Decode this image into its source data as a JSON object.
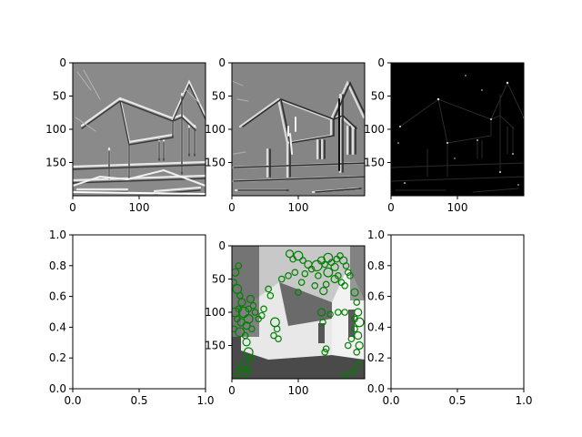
{
  "colors": {
    "background": "#ffffff",
    "axis": "#000000",
    "marker": "#008000",
    "filter_neutral_gray": "#808080",
    "response_background": "#000000"
  },
  "chart_data": [
    {
      "panel": "horizontal-gradient",
      "type": "image",
      "description": "grayscale edge-filter response of the house photo",
      "xlim": [
        0,
        200
      ],
      "ylim": [
        200,
        0
      ],
      "xticks": [
        0,
        100
      ],
      "yticks": [
        0,
        50,
        100,
        150
      ],
      "xtick_labels": [
        "0",
        "100"
      ],
      "ytick_labels": [
        "0",
        "50",
        "100",
        "150"
      ],
      "grid": false
    },
    {
      "panel": "vertical-gradient",
      "type": "image",
      "description": "grayscale edge-filter response of the house photo",
      "xlim": [
        0,
        200
      ],
      "ylim": [
        200,
        0
      ],
      "xticks": [
        0,
        100
      ],
      "yticks": [
        0,
        50,
        100,
        150
      ],
      "xtick_labels": [
        "0",
        "100"
      ],
      "ytick_labels": [
        "0",
        "50",
        "100",
        "150"
      ],
      "grid": false
    },
    {
      "panel": "corner-response",
      "type": "image",
      "description": "mostly black response map with sparse bright points",
      "xlim": [
        0,
        200
      ],
      "ylim": [
        200,
        0
      ],
      "xticks": [
        0,
        100
      ],
      "yticks": [
        0,
        50,
        100,
        150
      ],
      "xtick_labels": [
        "0",
        "100"
      ],
      "ytick_labels": [
        "0",
        "50",
        "100",
        "150"
      ],
      "grid": false
    },
    {
      "panel": "empty-left",
      "type": "scatter",
      "xlim": [
        0,
        1
      ],
      "ylim": [
        0,
        1
      ],
      "xticks": [
        0,
        0.5,
        1
      ],
      "yticks": [
        0,
        0.2,
        0.4,
        0.6,
        0.8,
        1
      ],
      "xtick_labels": [
        "0.0",
        "0.5",
        "1.0"
      ],
      "ytick_labels": [
        "0.0",
        "0.2",
        "0.4",
        "0.6",
        "0.8",
        "1.0"
      ],
      "series": [],
      "grid": false
    },
    {
      "panel": "keypoints-overlay",
      "type": "scatter",
      "description": "grayscale house photo with green circle keypoints of varying radius",
      "xlim": [
        0,
        200
      ],
      "ylim": [
        200,
        0
      ],
      "xticks": [
        0,
        100
      ],
      "yticks": [
        0,
        50,
        100,
        150
      ],
      "xtick_labels": [
        "0",
        "100"
      ],
      "ytick_labels": [
        "0",
        "50",
        "100",
        "150"
      ],
      "marker_color": "#008000",
      "keypoints": [
        [
          87,
          12,
          5
        ],
        [
          92,
          20,
          4
        ],
        [
          100,
          15,
          6
        ],
        [
          107,
          22,
          4
        ],
        [
          115,
          28,
          5
        ],
        [
          120,
          35,
          4
        ],
        [
          128,
          30,
          7
        ],
        [
          135,
          22,
          5
        ],
        [
          140,
          28,
          4
        ],
        [
          145,
          18,
          6
        ],
        [
          150,
          25,
          4
        ],
        [
          155,
          32,
          5
        ],
        [
          158,
          20,
          4
        ],
        [
          163,
          15,
          4
        ],
        [
          168,
          22,
          5
        ],
        [
          172,
          30,
          4
        ],
        [
          175,
          40,
          4
        ],
        [
          145,
          40,
          6
        ],
        [
          130,
          45,
          4
        ],
        [
          155,
          50,
          5
        ],
        [
          160,
          45,
          4
        ],
        [
          165,
          55,
          4
        ],
        [
          170,
          60,
          4
        ],
        [
          178,
          45,
          4
        ],
        [
          185,
          70,
          5
        ],
        [
          188,
          85,
          4
        ],
        [
          190,
          100,
          5
        ],
        [
          185,
          110,
          4
        ],
        [
          192,
          115,
          6
        ],
        [
          185,
          125,
          4
        ],
        [
          190,
          135,
          5
        ],
        [
          180,
          140,
          4
        ],
        [
          175,
          150,
          4
        ],
        [
          188,
          160,
          4
        ],
        [
          192,
          150,
          5
        ],
        [
          170,
          100,
          4
        ],
        [
          160,
          100,
          4
        ],
        [
          135,
          100,
          5
        ],
        [
          148,
          103,
          4
        ],
        [
          137,
          115,
          4
        ],
        [
          140,
          160,
          4
        ],
        [
          142,
          155,
          4
        ],
        [
          10,
          30,
          4
        ],
        [
          5,
          40,
          5
        ],
        [
          3,
          55,
          4
        ],
        [
          8,
          65,
          6
        ],
        [
          12,
          75,
          4
        ],
        [
          15,
          85,
          5
        ],
        [
          10,
          95,
          4
        ],
        [
          5,
          100,
          6
        ],
        [
          8,
          110,
          4
        ],
        [
          14,
          115,
          5
        ],
        [
          3,
          125,
          4
        ],
        [
          12,
          130,
          6
        ],
        [
          20,
          135,
          4
        ],
        [
          22,
          120,
          5
        ],
        [
          25,
          110,
          6
        ],
        [
          18,
          100,
          7
        ],
        [
          25,
          95,
          4
        ],
        [
          28,
          80,
          5
        ],
        [
          32,
          90,
          4
        ],
        [
          35,
          100,
          4
        ],
        [
          40,
          110,
          4
        ],
        [
          30,
          125,
          4
        ],
        [
          22,
          145,
          5
        ],
        [
          25,
          160,
          6
        ],
        [
          28,
          170,
          4
        ],
        [
          18,
          178,
          5
        ],
        [
          12,
          185,
          4
        ],
        [
          25,
          188,
          4
        ],
        [
          20,
          192,
          5
        ],
        [
          8,
          195,
          4
        ],
        [
          65,
          115,
          6
        ],
        [
          68,
          125,
          4
        ],
        [
          63,
          135,
          4
        ],
        [
          70,
          140,
          4
        ],
        [
          48,
          95,
          4
        ],
        [
          45,
          105,
          4
        ],
        [
          55,
          65,
          4
        ],
        [
          58,
          75,
          4
        ],
        [
          100,
          70,
          4
        ],
        [
          75,
          50,
          4
        ],
        [
          85,
          45,
          4
        ],
        [
          95,
          40,
          4
        ],
        [
          110,
          42,
          4
        ],
        [
          105,
          55,
          4
        ],
        [
          125,
          60,
          4
        ],
        [
          138,
          68,
          5
        ],
        [
          142,
          58,
          4
        ],
        [
          190,
          180,
          5
        ],
        [
          182,
          190,
          4
        ],
        [
          170,
          195,
          4
        ]
      ],
      "grid": false
    },
    {
      "panel": "empty-right",
      "type": "scatter",
      "xlim": [
        0,
        1
      ],
      "ylim": [
        0,
        1
      ],
      "xticks": [
        0,
        0.5,
        1
      ],
      "yticks": [
        0,
        0.2,
        0.4,
        0.6,
        0.8,
        1
      ],
      "xtick_labels": [
        "0.0",
        "0.5",
        "1.0"
      ],
      "ytick_labels": [
        "0.0",
        "0.2",
        "0.4",
        "0.6",
        "0.8",
        "1.0"
      ],
      "series": [],
      "grid": false
    }
  ]
}
